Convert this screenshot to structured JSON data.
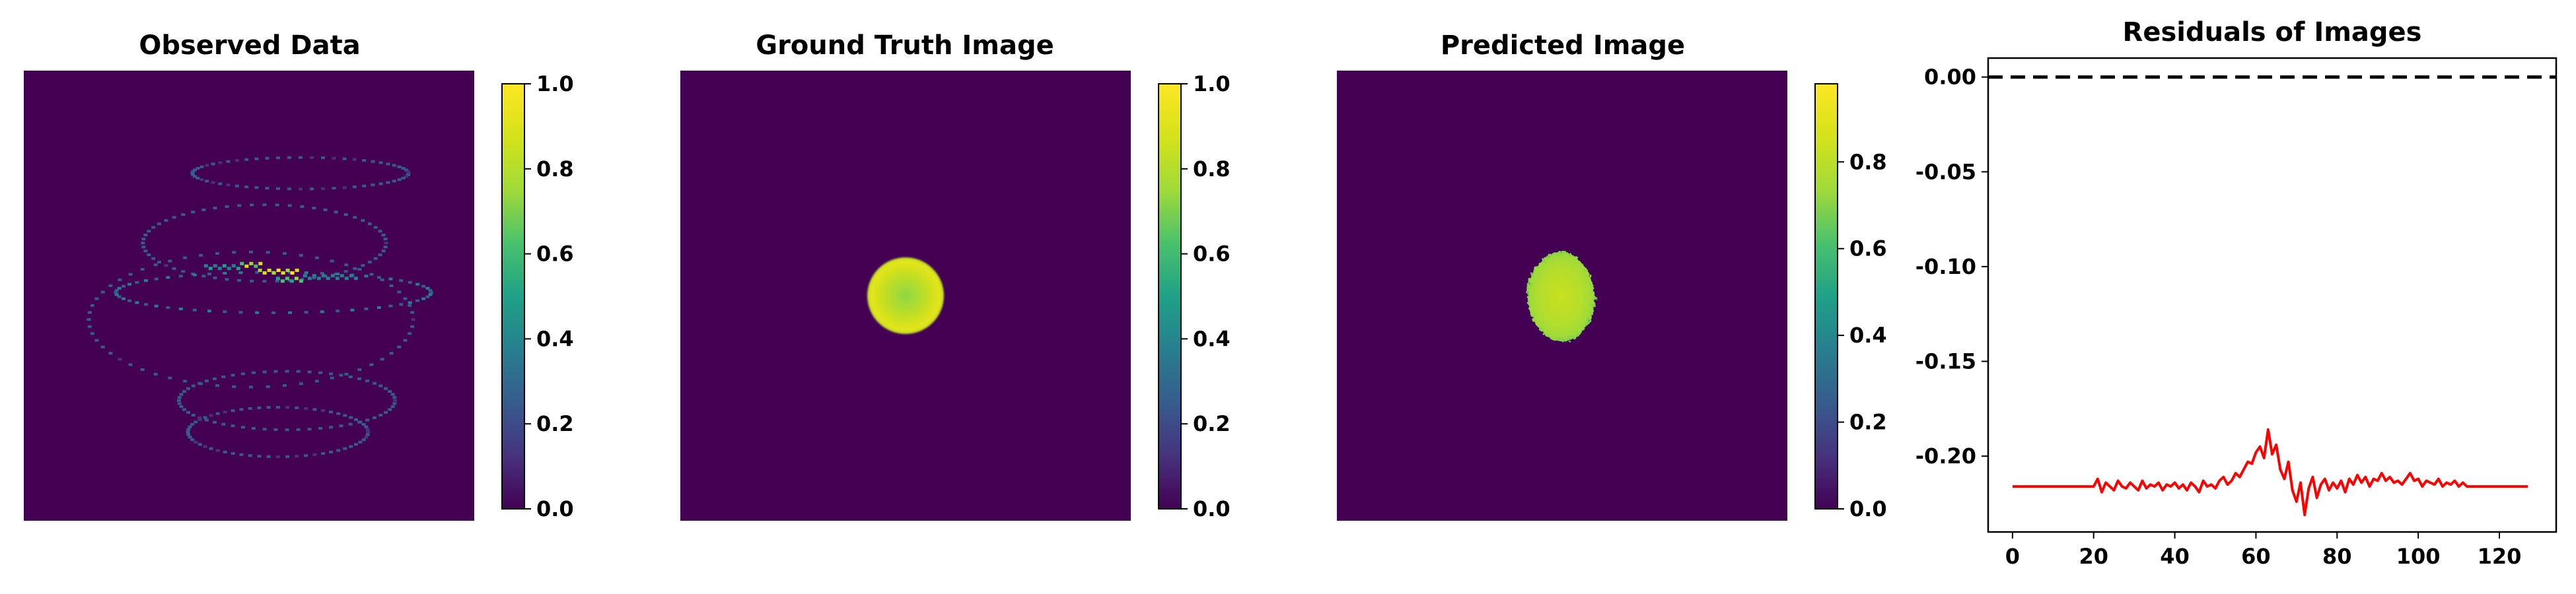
{
  "colors": {
    "background": "#440154",
    "ring": "#3b528b",
    "residual_line": "#ff0000",
    "zero_line": "#000000"
  },
  "chart_data": [
    {
      "type": "heatmap",
      "title": "Observed Data",
      "colorbar": {
        "range": [
          0.0,
          1.0
        ],
        "ticks": [
          "0.0",
          "0.2",
          "0.4",
          "0.6",
          "0.8",
          "1.0"
        ]
      },
      "content": {
        "rings": [
          {
            "cx": 0.61,
            "cy": 0.225,
            "rx": 0.24,
            "ry": 0.035,
            "value": 0.25
          },
          {
            "cx": 0.53,
            "cy": 0.38,
            "rx": 0.27,
            "ry": 0.085,
            "value": 0.3
          },
          {
            "cx": 0.55,
            "cy": 0.49,
            "rx": 0.35,
            "ry": 0.045,
            "value": 0.35
          },
          {
            "cx": 0.5,
            "cy": 0.55,
            "rx": 0.36,
            "ry": 0.15,
            "value": 0.3
          },
          {
            "cx": 0.58,
            "cy": 0.73,
            "rx": 0.24,
            "ry": 0.065,
            "value": 0.3
          },
          {
            "cx": 0.56,
            "cy": 0.8,
            "rx": 0.2,
            "ry": 0.055,
            "value": 0.25
          }
        ],
        "hotspots": [
          {
            "x": 0.48,
            "y": 0.425,
            "w": 0.05,
            "h": 0.016,
            "value": 0.9
          },
          {
            "x": 0.52,
            "y": 0.44,
            "w": 0.09,
            "h": 0.016,
            "value": 1.0
          },
          {
            "x": 0.56,
            "y": 0.458,
            "w": 0.06,
            "h": 0.014,
            "value": 0.75
          },
          {
            "x": 0.62,
            "y": 0.452,
            "w": 0.12,
            "h": 0.012,
            "value": 0.45
          },
          {
            "x": 0.4,
            "y": 0.43,
            "w": 0.08,
            "h": 0.012,
            "value": 0.5
          }
        ]
      }
    },
    {
      "type": "heatmap",
      "title": "Ground Truth Image",
      "colorbar": {
        "range": [
          0.0,
          1.0
        ],
        "ticks": [
          "0.0",
          "0.2",
          "0.4",
          "0.6",
          "0.8",
          "1.0"
        ]
      },
      "content": {
        "disk": {
          "cx": 0.5,
          "cy": 0.5,
          "r": 0.085,
          "edge_value": 0.95,
          "center_value": 0.82
        }
      }
    },
    {
      "type": "heatmap",
      "title": "Predicted Image",
      "colorbar": {
        "range": [
          0.0,
          0.98
        ],
        "ticks": [
          "0.0",
          "0.2",
          "0.4",
          "0.6",
          "0.8"
        ]
      },
      "content": {
        "blob": {
          "cx": 0.5,
          "cy": 0.5,
          "r": 0.085,
          "value": 0.9
        }
      }
    },
    {
      "type": "line",
      "title": "Residuals of Images",
      "xlim": [
        -6,
        134
      ],
      "ylim": [
        -0.24,
        0.01
      ],
      "xticks": [
        0,
        20,
        40,
        60,
        80,
        100,
        120
      ],
      "yticks": [
        0.0,
        -0.05,
        -0.1,
        -0.15,
        -0.2
      ],
      "xtick_labels": [
        "0",
        "20",
        "40",
        "60",
        "80",
        "100",
        "120"
      ],
      "ytick_labels": [
        "0.00",
        "-0.05",
        "-0.10",
        "-0.15",
        "-0.20"
      ],
      "zero_line": 0.0,
      "series": [
        {
          "x": [
            0,
            2,
            4,
            6,
            8,
            10,
            12,
            14,
            16,
            18,
            20,
            21,
            22,
            23,
            24,
            25,
            26,
            27,
            28,
            29,
            30,
            31,
            32,
            33,
            34,
            35,
            36,
            37,
            38,
            39,
            40,
            41,
            42,
            43,
            44,
            45,
            46,
            47,
            48,
            49,
            50,
            51,
            52,
            53,
            54,
            55,
            56,
            57,
            58,
            59,
            60,
            61,
            62,
            63,
            64,
            65,
            66,
            67,
            68,
            69,
            70,
            71,
            72,
            73,
            74,
            75,
            76,
            77,
            78,
            79,
            80,
            81,
            82,
            83,
            84,
            85,
            86,
            87,
            88,
            89,
            90,
            91,
            92,
            93,
            94,
            95,
            96,
            97,
            98,
            99,
            100,
            101,
            102,
            103,
            104,
            105,
            106,
            107,
            108,
            109,
            110,
            111,
            112,
            114,
            116,
            118,
            120,
            122,
            124,
            126,
            127
          ],
          "values": [
            -0.216,
            -0.216,
            -0.216,
            -0.216,
            -0.216,
            -0.216,
            -0.216,
            -0.216,
            -0.216,
            -0.216,
            -0.216,
            -0.212,
            -0.219,
            -0.214,
            -0.216,
            -0.218,
            -0.213,
            -0.216,
            -0.217,
            -0.214,
            -0.216,
            -0.218,
            -0.213,
            -0.217,
            -0.215,
            -0.216,
            -0.214,
            -0.218,
            -0.215,
            -0.216,
            -0.214,
            -0.217,
            -0.215,
            -0.218,
            -0.214,
            -0.216,
            -0.219,
            -0.213,
            -0.216,
            -0.215,
            -0.217,
            -0.213,
            -0.211,
            -0.215,
            -0.213,
            -0.209,
            -0.211,
            -0.207,
            -0.203,
            -0.204,
            -0.198,
            -0.195,
            -0.201,
            -0.186,
            -0.199,
            -0.194,
            -0.207,
            -0.212,
            -0.203,
            -0.218,
            -0.224,
            -0.214,
            -0.231,
            -0.217,
            -0.211,
            -0.222,
            -0.215,
            -0.212,
            -0.218,
            -0.214,
            -0.217,
            -0.213,
            -0.219,
            -0.212,
            -0.215,
            -0.21,
            -0.214,
            -0.211,
            -0.216,
            -0.212,
            -0.213,
            -0.209,
            -0.213,
            -0.211,
            -0.214,
            -0.213,
            -0.215,
            -0.212,
            -0.209,
            -0.213,
            -0.212,
            -0.216,
            -0.213,
            -0.214,
            -0.215,
            -0.212,
            -0.216,
            -0.214,
            -0.215,
            -0.213,
            -0.216,
            -0.214,
            -0.216,
            -0.216,
            -0.216,
            -0.216,
            -0.216,
            -0.216,
            -0.216,
            -0.216,
            -0.216
          ]
        }
      ]
    }
  ]
}
